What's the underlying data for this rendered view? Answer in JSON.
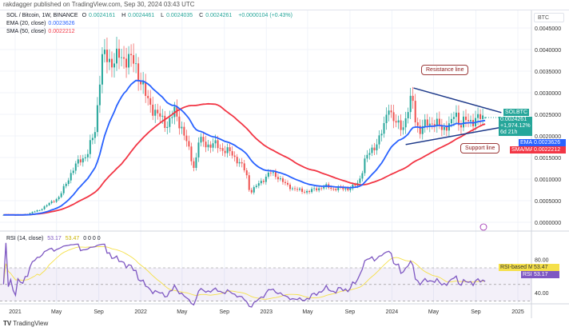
{
  "publisher": "rakdagger published on TradingView.com, Sep 30, 2024 03:43 UTC",
  "header": {
    "symbol": "SOL / Bitcoin, 1W, BINANCE",
    "o_label": "O",
    "o": "0.0024161",
    "h_label": "H",
    "h": "0.0024461",
    "l_label": "L",
    "l": "0.0024035",
    "c_label": "C",
    "c": "0.0024261",
    "change": "+0.0000104 (+0.43%)",
    "ema_label": "EMA (20, close)",
    "ema_value": "0.0023626",
    "sma_label": "SMA (50, close)",
    "sma_value": "0.0022212"
  },
  "axis_currency": "BTC",
  "price_tags": {
    "symbol_tag": "SOLBTC",
    "price": "0.0024261",
    "pct": "+1,974.12%",
    "countdown": "6d 21h",
    "ema_tag": "EMA",
    "ema": "0.0023626",
    "sma_tag": "SMA/MA",
    "sma": "0.0022212"
  },
  "annotations": {
    "resistance": "Resistance line",
    "support": "Support line"
  },
  "rsi": {
    "legend": "RSI (14, close)",
    "rsi_value": "53.17",
    "ma_value": "53.47",
    "extra": "0 0 0 0",
    "ma_tag": "RSI-based MA",
    "rsi_tag": "RSI",
    "ticks": [
      "80.00",
      "40.00"
    ]
  },
  "colors": {
    "up": "#26a69a",
    "down": "#ef5350",
    "ema": "#2962ff",
    "sma": "#f23645",
    "rsi": "#7e57c2",
    "rsi_ma": "#f5e04a",
    "trendline": "#1e3a8a"
  },
  "logo": "TradingView",
  "chart_data": {
    "type": "candlestick",
    "interval": "1W",
    "y_ticks": [
      "0.0045000",
      "0.0040000",
      "0.0035000",
      "0.0030000",
      "0.0025000",
      "0.0020000",
      "0.0015000",
      "0.0010000",
      "0.0005000",
      "0.0000000"
    ],
    "ylim": [
      0,
      0.0045
    ],
    "x_ticks": [
      {
        "label": "2021",
        "date": "2021-01-01"
      },
      {
        "label": "May",
        "date": "2021-05-01"
      },
      {
        "label": "Sep",
        "date": "2021-09-01"
      },
      {
        "label": "2022",
        "date": "2022-01-01"
      },
      {
        "label": "May",
        "date": "2022-05-01"
      },
      {
        "label": "Sep",
        "date": "2022-09-01"
      },
      {
        "label": "2023",
        "date": "2023-01-01"
      },
      {
        "label": "May",
        "date": "2023-05-01"
      },
      {
        "label": "Sep",
        "date": "2023-09-01"
      },
      {
        "label": "2024",
        "date": "2024-01-01"
      },
      {
        "label": "May",
        "date": "2024-05-01"
      },
      {
        "label": "Sep",
        "date": "2024-09-01"
      },
      {
        "label": "2025",
        "date": "2025-01-01"
      }
    ],
    "close_path": [
      [
        "2020-11-28",
        0.00017
      ],
      [
        "2021-01-26",
        0.00017
      ],
      [
        "2021-03-12",
        0.00028
      ],
      [
        "2021-04-06",
        0.00041
      ],
      [
        "2021-05-10",
        0.00059
      ],
      [
        "2021-06-13",
        0.00115
      ],
      [
        "2021-07-06",
        0.00143
      ],
      [
        "2021-07-30",
        0.00157
      ],
      [
        "2021-08-22",
        0.00217
      ],
      [
        "2021-09-03",
        0.00328
      ],
      [
        "2021-09-10",
        0.00374
      ],
      [
        "2021-09-19",
        0.00383
      ],
      [
        "2021-10-07",
        0.00374
      ],
      [
        "2021-10-30",
        0.0038
      ],
      [
        "2021-11-22",
        0.00383
      ],
      [
        "2021-12-15",
        0.00365
      ],
      [
        "2022-01-02",
        0.00328
      ],
      [
        "2022-01-19",
        0.00281
      ],
      [
        "2022-01-30",
        0.00272
      ],
      [
        "2022-02-23",
        0.00244
      ],
      [
        "2022-03-17",
        0.00226
      ],
      [
        "2022-04-09",
        0.00254
      ],
      [
        "2022-05-02",
        0.00217
      ],
      [
        "2022-05-26",
        0.00152
      ],
      [
        "2022-06-06",
        0.00124
      ],
      [
        "2022-06-18",
        0.00189
      ],
      [
        "2022-07-11",
        0.0018
      ],
      [
        "2022-08-03",
        0.0018
      ],
      [
        "2022-08-26",
        0.0017
      ],
      [
        "2022-09-18",
        0.00161
      ],
      [
        "2022-10-11",
        0.00143
      ],
      [
        "2022-11-03",
        0.00115
      ],
      [
        "2022-11-14",
        0.00069
      ],
      [
        "2022-11-26",
        0.00078
      ],
      [
        "2022-12-19",
        0.00096
      ],
      [
        "2023-01-11",
        0.00115
      ],
      [
        "2023-02-03",
        0.00106
      ],
      [
        "2023-02-26",
        0.00087
      ],
      [
        "2023-03-21",
        0.00078
      ],
      [
        "2023-04-13",
        0.00072
      ],
      [
        "2023-05-06",
        0.00072
      ],
      [
        "2023-05-29",
        0.00078
      ],
      [
        "2023-06-21",
        0.00083
      ],
      [
        "2023-07-14",
        0.00078
      ],
      [
        "2023-08-06",
        0.00078
      ],
      [
        "2023-08-29",
        0.00078
      ],
      [
        "2023-09-21",
        0.00087
      ],
      [
        "2023-10-02",
        0.00106
      ],
      [
        "2023-10-14",
        0.00143
      ],
      [
        "2023-11-06",
        0.00171
      ],
      [
        "2023-11-29",
        0.00198
      ],
      [
        "2023-12-11",
        0.00226
      ],
      [
        "2023-12-22",
        0.00281
      ],
      [
        "2024-01-03",
        0.00235
      ],
      [
        "2024-01-14",
        0.00226
      ],
      [
        "2024-02-06",
        0.00226
      ],
      [
        "2024-02-29",
        0.00291
      ],
      [
        "2024-03-11",
        0.00235
      ],
      [
        "2024-03-22",
        0.00207
      ],
      [
        "2024-04-14",
        0.00235
      ],
      [
        "2024-05-07",
        0.00226
      ],
      [
        "2024-05-30",
        0.0022
      ],
      [
        "2024-06-22",
        0.00226
      ],
      [
        "2024-07-03",
        0.00263
      ],
      [
        "2024-07-15",
        0.00226
      ],
      [
        "2024-08-07",
        0.00235
      ],
      [
        "2024-09-30",
        0.0024261
      ]
    ],
    "last_candle": {
      "open": 0.0024161,
      "high": 0.0024461,
      "low": 0.0024035,
      "close": 0.0024261
    },
    "indicators": [
      {
        "name": "EMA (20, close)",
        "period": 20,
        "color": "#2962ff"
      },
      {
        "name": "SMA (50, close)",
        "period": 50,
        "color": "#f23645"
      }
    ],
    "trendlines": [
      {
        "name": "Resistance line",
        "from": [
          "2024-03-04",
          0.00311
        ],
        "to": [
          "2024-11-14",
          0.00254
        ]
      },
      {
        "name": "Support line",
        "from": [
          "2024-02-10",
          0.0018
        ],
        "to": [
          "2024-11-14",
          0.0022
        ]
      }
    ],
    "rsi_pane": {
      "period": 14,
      "ma_period": 14,
      "ylim": [
        20,
        95
      ],
      "bands": [
        70,
        30
      ],
      "ticks": [
        80,
        40
      ]
    }
  }
}
